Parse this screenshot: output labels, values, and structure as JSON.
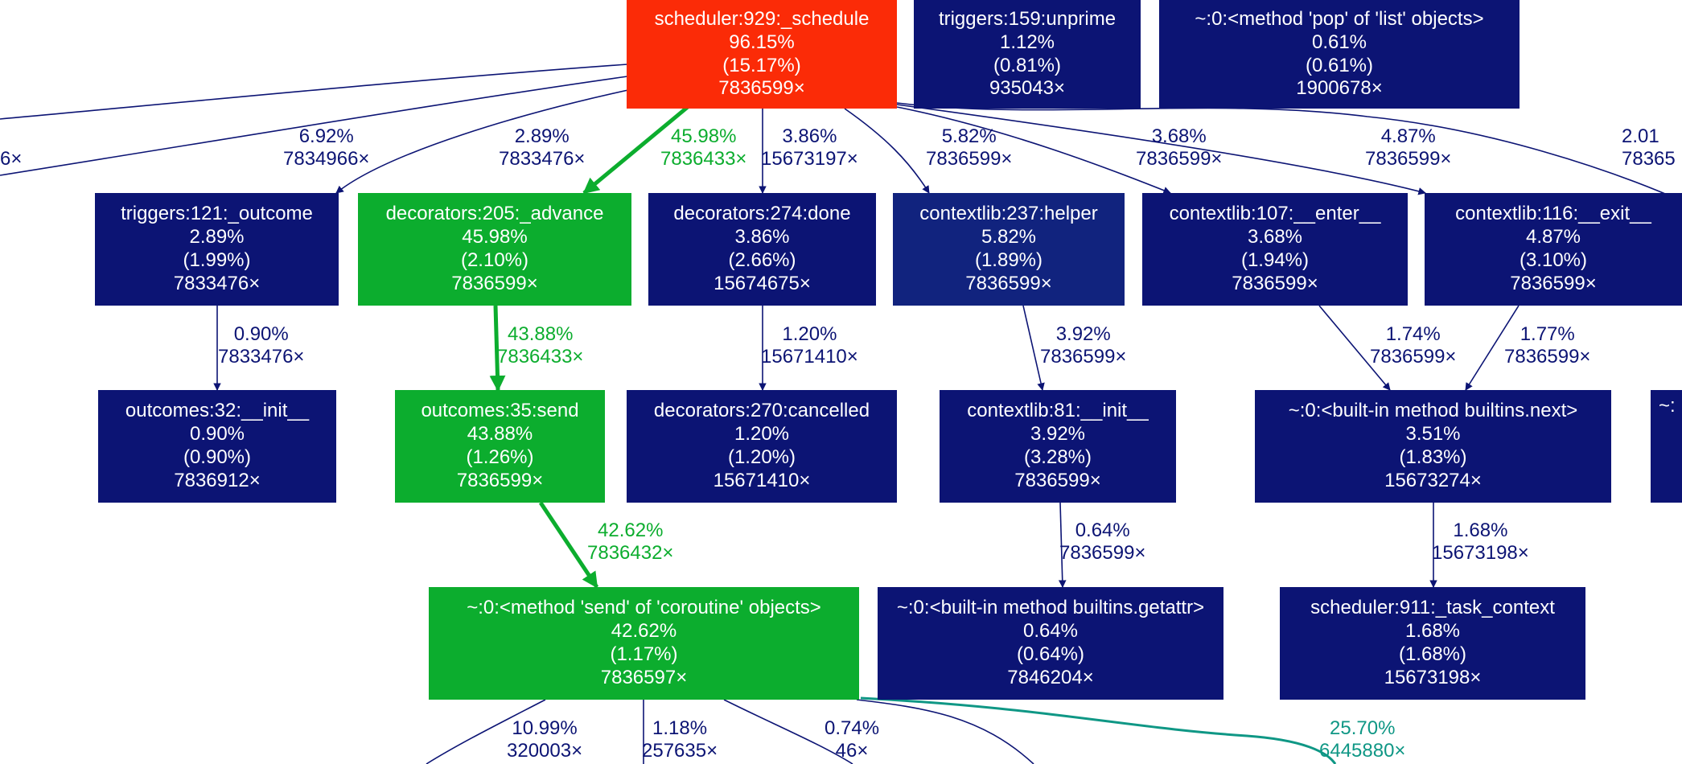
{
  "colors": {
    "cold": "#0c1474",
    "hot_path": "#0cad2e",
    "root": "#fb2b07",
    "teal_edge": "#0f9785"
  },
  "nodes": {
    "schedule": {
      "name": "scheduler:929:_schedule",
      "total": "96.15%",
      "self": "(15.17%)",
      "calls": "7836599×"
    },
    "unprime": {
      "name": "triggers:159:unprime",
      "total": "1.12%",
      "self": "(0.81%)",
      "calls": "935043×"
    },
    "pop": {
      "name": "~:0:<method 'pop' of 'list' objects>",
      "total": "0.61%",
      "self": "(0.61%)",
      "calls": "1900678×"
    },
    "outcome": {
      "name": "triggers:121:_outcome",
      "total": "2.89%",
      "self": "(1.99%)",
      "calls": "7833476×"
    },
    "advance": {
      "name": "decorators:205:_advance",
      "total": "45.98%",
      "self": "(2.10%)",
      "calls": "7836599×"
    },
    "done": {
      "name": "decorators:274:done",
      "total": "3.86%",
      "self": "(2.66%)",
      "calls": "15674675×"
    },
    "helper": {
      "name": "contextlib:237:helper",
      "total": "5.82%",
      "self": "(1.89%)",
      "calls": "7836599×"
    },
    "enter": {
      "name": "contextlib:107:__enter__",
      "total": "3.68%",
      "self": "(1.94%)",
      "calls": "7836599×"
    },
    "exit": {
      "name": "contextlib:116:__exit__",
      "total": "4.87%",
      "self": "(3.10%)",
      "calls": "7836599×"
    },
    "outcomes_init": {
      "name": "outcomes:32:__init__",
      "total": "0.90%",
      "self": "(0.90%)",
      "calls": "7836912×"
    },
    "send": {
      "name": "outcomes:35:send",
      "total": "43.88%",
      "self": "(1.26%)",
      "calls": "7836599×"
    },
    "cancelled": {
      "name": "decorators:270:cancelled",
      "total": "1.20%",
      "self": "(1.20%)",
      "calls": "15671410×"
    },
    "ctx_init": {
      "name": "contextlib:81:__init__",
      "total": "3.92%",
      "self": "(3.28%)",
      "calls": "7836599×"
    },
    "next": {
      "name": "~:0:<built-in method builtins.next>",
      "total": "3.51%",
      "self": "(1.83%)",
      "calls": "15673274×"
    },
    "partial": {
      "name": "~:"
    },
    "coro_send": {
      "name": "~:0:<method 'send' of 'coroutine' objects>",
      "total": "42.62%",
      "self": "(1.17%)",
      "calls": "7836597×"
    },
    "getattr": {
      "name": "~:0:<built-in method builtins.getattr>",
      "total": "0.64%",
      "self": "(0.64%)",
      "calls": "7846204×"
    },
    "task_context": {
      "name": "scheduler:911:_task_context",
      "total": "1.68%",
      "self": "(1.68%)",
      "calls": "15673198×"
    }
  },
  "edges": {
    "left_cut": {
      "calls": "6×"
    },
    "to_outcome_pct": {
      "pct": "6.92%",
      "calls": "7834966×"
    },
    "to_outcome": {
      "pct": "2.89%",
      "calls": "7833476×"
    },
    "to_advance": {
      "pct": "45.98%",
      "calls": "7836433×"
    },
    "to_done": {
      "pct": "3.86%",
      "calls": "15673197×"
    },
    "to_helper": {
      "pct": "5.82%",
      "calls": "7836599×"
    },
    "to_enter": {
      "pct": "3.68%",
      "calls": "7836599×"
    },
    "to_exit": {
      "pct": "4.87%",
      "calls": "7836599×"
    },
    "right_cut": {
      "pct": "2.01",
      "calls": "78365"
    },
    "to_outcomes_init": {
      "pct": "0.90%",
      "calls": "7833476×"
    },
    "to_send": {
      "pct": "43.88%",
      "calls": "7836433×"
    },
    "to_cancelled": {
      "pct": "1.20%",
      "calls": "15671410×"
    },
    "to_ctx_init": {
      "pct": "3.92%",
      "calls": "7836599×"
    },
    "enter_to_next": {
      "pct": "1.74%",
      "calls": "7836599×"
    },
    "exit_to_next": {
      "pct": "1.77%",
      "calls": "7836599×"
    },
    "to_coro_send": {
      "pct": "42.62%",
      "calls": "7836432×"
    },
    "to_getattr": {
      "pct": "0.64%",
      "calls": "7836599×"
    },
    "to_task_context": {
      "pct": "1.68%",
      "calls": "15673198×"
    },
    "coro_a": {
      "pct": "10.99%",
      "calls": "320003×"
    },
    "coro_b": {
      "pct": "1.18%",
      "calls": "257635×"
    },
    "coro_c": {
      "pct": "0.74%",
      "calls": "46×"
    },
    "coro_d": {
      "pct": "25.70%",
      "calls": "6445880×"
    }
  }
}
